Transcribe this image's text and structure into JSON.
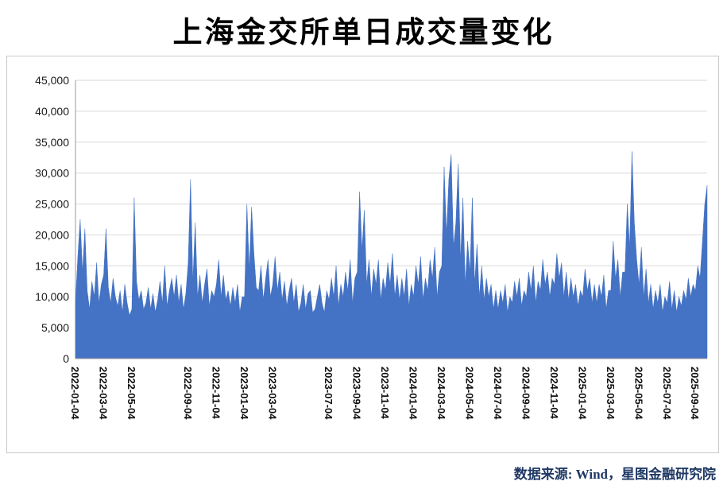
{
  "page": {
    "title": "上海金交所单日成交量变化",
    "source_note": "数据来源: Wind，星图金融研究院"
  },
  "chart_data": {
    "type": "area",
    "title": "上海金交所单日成交量变化",
    "xlabel": "",
    "ylabel": "",
    "ylim": [
      0,
      45000
    ],
    "grid": true,
    "legend": "none",
    "colors": {
      "fill": "#4472C4",
      "grid": "#D9D9D9",
      "axis": "#9A9A9A",
      "tick_text": "#1A1A1A",
      "source_text": "#1F3864",
      "border": "#C9C9C9"
    },
    "y_ticks": [
      {
        "value": 0,
        "label": "0"
      },
      {
        "value": 5000,
        "label": "5,000"
      },
      {
        "value": 10000,
        "label": "10,000"
      },
      {
        "value": 15000,
        "label": "15,000"
      },
      {
        "value": 20000,
        "label": "20,000"
      },
      {
        "value": 25000,
        "label": "25,000"
      },
      {
        "value": 30000,
        "label": "30,000"
      },
      {
        "value": 35000,
        "label": "35,000"
      },
      {
        "value": 40000,
        "label": "40,000"
      },
      {
        "value": 45000,
        "label": "45,000"
      }
    ],
    "points_per_month": 6,
    "x_ticks": [
      {
        "label": "2022-01-04",
        "month": 0
      },
      {
        "label": "2022-03-04",
        "month": 2
      },
      {
        "label": "2022-05-04",
        "month": 4
      },
      {
        "label": "2022-09-04",
        "month": 8
      },
      {
        "label": "2022-11-04",
        "month": 10
      },
      {
        "label": "2023-01-04",
        "month": 12
      },
      {
        "label": "2023-03-04",
        "month": 14
      },
      {
        "label": "2023-07-04",
        "month": 18
      },
      {
        "label": "2023-09-04",
        "month": 20
      },
      {
        "label": "2023-11-04",
        "month": 22
      },
      {
        "label": "2024-01-04",
        "month": 24
      },
      {
        "label": "2024-03-04",
        "month": 26
      },
      {
        "label": "2024-05-04",
        "month": 28
      },
      {
        "label": "2024-07-04",
        "month": 30
      },
      {
        "label": "2024-09-04",
        "month": 32
      },
      {
        "label": "2024-11-04",
        "month": 34
      },
      {
        "label": "2025-01-04",
        "month": 36
      },
      {
        "label": "2025-03-04",
        "month": 38
      },
      {
        "label": "2025-05-04",
        "month": 40
      },
      {
        "label": "2025-07-04",
        "month": 42
      },
      {
        "label": "2025-09-04",
        "month": 44
      }
    ],
    "series": [
      {
        "name": "单日成交量",
        "values": [
          9000,
          16500,
          22500,
          14000,
          21000,
          11000,
          8000,
          12500,
          10000,
          15500,
          9000,
          12000,
          13500,
          21000,
          11500,
          9000,
          13000,
          10000,
          8500,
          11000,
          7500,
          12000,
          9000,
          7000,
          8000,
          26000,
          12500,
          9500,
          11000,
          8000,
          9000,
          11500,
          8000,
          10500,
          7500,
          9500,
          12500,
          9000,
          15000,
          8500,
          11000,
          13000,
          10000,
          13500,
          9000,
          12000,
          8000,
          10500,
          15500,
          29000,
          12500,
          22000,
          10000,
          13500,
          9000,
          12000,
          14500,
          8500,
          11000,
          10000,
          12000,
          16000,
          10000,
          13500,
          9500,
          11000,
          8500,
          11500,
          9000,
          12000,
          7500,
          10000,
          10000,
          25000,
          14500,
          24500,
          17000,
          11500,
          11000,
          15000,
          9500,
          13000,
          16000,
          10000,
          12000,
          16500,
          11000,
          14000,
          9500,
          12500,
          8500,
          11000,
          13000,
          9000,
          12000,
          7500,
          9000,
          12000,
          8000,
          10500,
          11000,
          7500,
          8000,
          10000,
          12000,
          9000,
          7500,
          11000,
          9500,
          13000,
          10000,
          15000,
          8500,
          12000,
          10000,
          14000,
          11000,
          16000,
          9000,
          13000,
          14000,
          27000,
          17500,
          24000,
          12000,
          16000,
          10000,
          14500,
          12000,
          16000,
          9500,
          13000,
          11000,
          15500,
          12000,
          17000,
          10000,
          13500,
          9500,
          13000,
          10000,
          14500,
          8500,
          12000,
          10000,
          15000,
          12000,
          16500,
          9500,
          13000,
          11000,
          16000,
          13000,
          18000,
          10000,
          14000,
          15000,
          31000,
          20000,
          29000,
          33000,
          18000,
          22000,
          31500,
          16000,
          26000,
          12000,
          19000,
          14000,
          26000,
          12000,
          18500,
          10000,
          15000,
          9500,
          13000,
          10000,
          12000,
          8000,
          11000,
          8000,
          11000,
          9000,
          12000,
          7500,
          10000,
          9000,
          12500,
          10000,
          13000,
          8500,
          11000,
          10000,
          14000,
          11000,
          15000,
          9000,
          12500,
          11000,
          16000,
          12000,
          14000,
          10000,
          13000,
          12000,
          17000,
          13000,
          15500,
          10000,
          14000,
          9500,
          13000,
          10000,
          12000,
          8500,
          11000,
          10000,
          14500,
          11000,
          13000,
          9000,
          12000,
          9000,
          12000,
          10000,
          13500,
          8000,
          11000,
          11000,
          19000,
          13000,
          16000,
          10000,
          14000,
          14000,
          25000,
          18000,
          33500,
          22000,
          16000,
          12000,
          18000,
          10000,
          14500,
          9000,
          12000,
          8000,
          11000,
          9000,
          12000,
          7500,
          10000,
          9000,
          12500,
          8000,
          11000,
          7500,
          10000,
          8500,
          11000,
          9500,
          13000,
          10000,
          12000,
          11000,
          15000,
          13000,
          19000,
          25000,
          28000
        ]
      }
    ]
  }
}
